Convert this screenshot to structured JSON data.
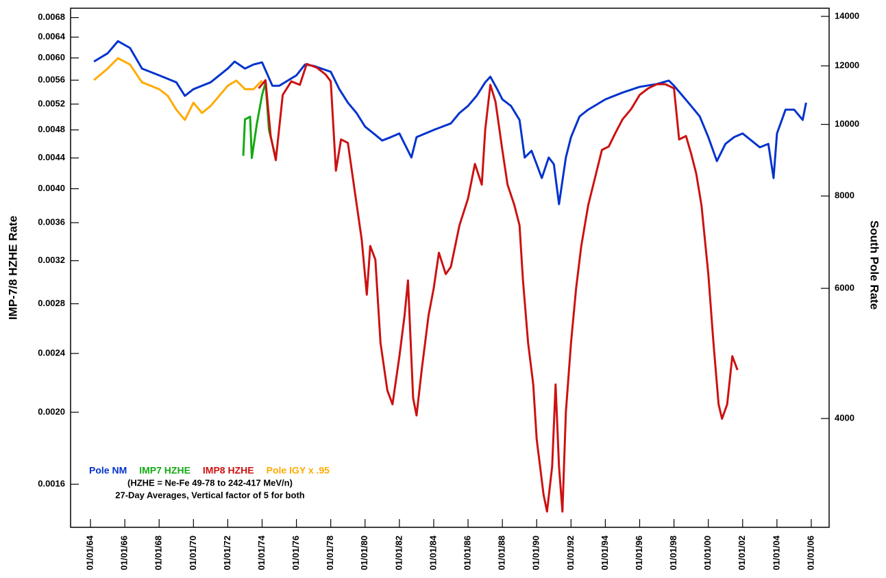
{
  "chart_data": {
    "type": "line",
    "y_label": "IMP-7/8 HZHE Rate",
    "y2_label": "South Pole Rate",
    "log_scale": true,
    "legend": "lower left",
    "annotations": [
      "(HZHE = Ne-Fe 49-78 to 242-417 MeV/n)",
      "27-Day Averages, Vertical factor of 5 for both"
    ],
    "xlim": [
      1962.84,
      2007.04
    ],
    "xticks": [
      {
        "value": 1964,
        "label": "01/01/64"
      },
      {
        "value": 1966,
        "label": "01/01/66"
      },
      {
        "value": 1968,
        "label": "01/01/68"
      },
      {
        "value": 1970,
        "label": "01/01/70"
      },
      {
        "value": 1972,
        "label": "01/01/72"
      },
      {
        "value": 1974,
        "label": "01/01/74"
      },
      {
        "value": 1976,
        "label": "01/01/76"
      },
      {
        "value": 1978,
        "label": "01/01/78"
      },
      {
        "value": 1980,
        "label": "01/01/80"
      },
      {
        "value": 1982,
        "label": "01/01/82"
      },
      {
        "value": 1984,
        "label": "01/01/84"
      },
      {
        "value": 1986,
        "label": "01/01/86"
      },
      {
        "value": 1988,
        "label": "01/01/88"
      },
      {
        "value": 1990,
        "label": "01/01/90"
      },
      {
        "value": 1992,
        "label": "01/01/92"
      },
      {
        "value": 1994,
        "label": "01/01/94"
      },
      {
        "value": 1996,
        "label": "01/01/96"
      },
      {
        "value": 1998,
        "label": "01/01/98"
      },
      {
        "value": 2000,
        "label": "01/01/00"
      },
      {
        "value": 2002,
        "label": "01/01/02"
      },
      {
        "value": 2004,
        "label": "01/01/04"
      },
      {
        "value": 2006,
        "label": "01/01/06"
      }
    ],
    "ylim": [
      0.0014,
      0.007
    ],
    "yticks": [
      0.0016,
      {
        "value": 0.002,
        "label": "0.0020"
      },
      0.0024,
      0.0028,
      0.0032,
      0.0036,
      {
        "value": 0.004,
        "label": "0.0040"
      },
      0.0044,
      0.0048,
      0.0052,
      0.0056,
      {
        "value": 0.006,
        "label": "0.0060"
      },
      0.0064,
      0.0068
    ],
    "y2lim": [
      2850,
      14360
    ],
    "y2ticks": [
      4000,
      6000,
      8000,
      10000,
      12000,
      14000
    ],
    "series": [
      {
        "name": "Pole NM",
        "color": "#0033cc",
        "axis": "y2",
        "x": [
          1964.2,
          1965.0,
          1965.6,
          1966.3,
          1967.0,
          1968.0,
          1969.0,
          1969.5,
          1970.0,
          1971.0,
          1972.0,
          1972.4,
          1973.0,
          1973.5,
          1974.0,
          1974.6,
          1975.0,
          1976.0,
          1976.5,
          1977.0,
          1978.0,
          1978.5,
          1979.0,
          1979.5,
          1980.0,
          1980.5,
          1981.0,
          1981.5,
          1982.0,
          1982.7,
          1983.0,
          1984.0,
          1985.0,
          1985.5,
          1986.0,
          1986.5,
          1987.0,
          1987.3,
          1987.7,
          1988.0,
          1988.5,
          1989.0,
          1989.3,
          1989.7,
          1990.0,
          1990.3,
          1990.7,
          1991.0,
          1991.3,
          1991.7,
          1992.0,
          1992.5,
          1993.0,
          1994.0,
          1995.0,
          1996.0,
          1997.0,
          1997.7,
          1998.0,
          1998.5,
          1999.0,
          1999.5,
          2000.0,
          2000.5,
          2001.0,
          2001.5,
          2002.0,
          2003.0,
          2003.5,
          2003.8,
          2004.0,
          2004.5,
          2005.0,
          2005.5,
          2005.7
        ],
        "values": [
          12160,
          12480,
          12960,
          12690,
          11900,
          11650,
          11400,
          10930,
          11160,
          11400,
          11900,
          12160,
          11900,
          12050,
          12130,
          11280,
          11280,
          11650,
          12050,
          12000,
          11780,
          11160,
          10700,
          10360,
          9930,
          9720,
          9510,
          9610,
          9720,
          9020,
          9610,
          9830,
          10030,
          10360,
          10590,
          10930,
          11400,
          11600,
          11160,
          10810,
          10590,
          10140,
          9020,
          9210,
          8830,
          8460,
          9020,
          8830,
          7800,
          9020,
          9610,
          10250,
          10470,
          10810,
          11040,
          11240,
          11340,
          11460,
          11280,
          10930,
          10590,
          10250,
          9610,
          8920,
          9410,
          9610,
          9720,
          9310,
          9410,
          8460,
          9720,
          10470,
          10470,
          10140,
          10700
        ]
      },
      {
        "name": "IMP7 HZHE",
        "color": "#11aa11",
        "axis": "y",
        "x": [
          1972.9,
          1973.0,
          1973.3,
          1973.4,
          1973.7,
          1974.0,
          1974.2,
          1974.4,
          1974.8
        ],
        "values": [
          0.00443,
          0.00496,
          0.005,
          0.0044,
          0.0049,
          0.00535,
          0.00556,
          0.0048,
          0.0044
        ]
      },
      {
        "name": "IMP8 HZHE",
        "color": "#cc1111",
        "axis": "y",
        "x": [
          1973.8,
          1974.2,
          1974.5,
          1974.8,
          1975.2,
          1975.7,
          1976.2,
          1976.6,
          1977.2,
          1977.7,
          1978.0,
          1978.3,
          1978.6,
          1979.0,
          1979.4,
          1979.8,
          1980.1,
          1980.3,
          1980.6,
          1980.9,
          1981.3,
          1981.6,
          1982.0,
          1982.3,
          1982.5,
          1982.8,
          1983.0,
          1983.3,
          1983.7,
          1984.0,
          1984.3,
          1984.7,
          1985.0,
          1985.5,
          1986.0,
          1986.4,
          1986.8,
          1987.0,
          1987.3,
          1987.6,
          1988.0,
          1988.3,
          1988.7,
          1989.0,
          1989.2,
          1989.5,
          1989.8,
          1990.0,
          1990.2,
          1990.4,
          1990.6,
          1990.9,
          1991.1,
          1991.3,
          1991.5,
          1991.7,
          1992.0,
          1992.3,
          1992.6,
          1993.0,
          1993.4,
          1993.8,
          1994.2,
          1994.6,
          1995.0,
          1995.5,
          1996.0,
          1996.5,
          1997.0,
          1997.5,
          1998.0,
          1998.3,
          1998.7,
          1999.0,
          1999.3,
          1999.6,
          2000.0,
          2000.3,
          2000.6,
          2000.8,
          2001.1,
          2001.4,
          2001.7
        ],
        "values": [
          0.00546,
          0.0056,
          0.00471,
          0.00437,
          0.00535,
          0.00558,
          0.00552,
          0.00589,
          0.00582,
          0.0057,
          0.00558,
          0.00423,
          0.00466,
          0.00461,
          0.00397,
          0.00342,
          0.00288,
          0.00335,
          0.00321,
          0.00248,
          0.00214,
          0.00205,
          0.00238,
          0.0027,
          0.00301,
          0.00209,
          0.00198,
          0.00228,
          0.0027,
          0.00294,
          0.00328,
          0.00307,
          0.00314,
          0.00357,
          0.00388,
          0.00432,
          0.00405,
          0.0048,
          0.00552,
          0.00524,
          0.00451,
          0.00405,
          0.0038,
          0.00357,
          0.00301,
          0.00248,
          0.00218,
          0.00184,
          0.00169,
          0.00155,
          0.00147,
          0.00169,
          0.00218,
          0.00169,
          0.00147,
          0.002,
          0.00248,
          0.00294,
          0.00335,
          0.0038,
          0.00414,
          0.00451,
          0.00456,
          0.00476,
          0.00496,
          0.00512,
          0.00535,
          0.00546,
          0.00553,
          0.00553,
          0.00546,
          0.00466,
          0.00471,
          0.00446,
          0.00419,
          0.0038,
          0.00307,
          0.00248,
          0.00205,
          0.00196,
          0.00205,
          0.00238,
          0.00228
        ]
      },
      {
        "name": "Pole IGY x .95",
        "color": "#ffaa00",
        "axis": "y2",
        "x": [
          1964.2,
          1965.0,
          1965.6,
          1966.3,
          1967.0,
          1968.0,
          1968.5,
          1969.0,
          1969.5,
          1970.0,
          1970.5,
          1971.0,
          1972.0,
          1972.5,
          1973.0,
          1973.5,
          1974.0
        ],
        "values": [
          11480,
          11900,
          12290,
          12050,
          11400,
          11160,
          10930,
          10470,
          10140,
          10700,
          10360,
          10590,
          11280,
          11460,
          11160,
          11160,
          11460
        ]
      }
    ]
  }
}
